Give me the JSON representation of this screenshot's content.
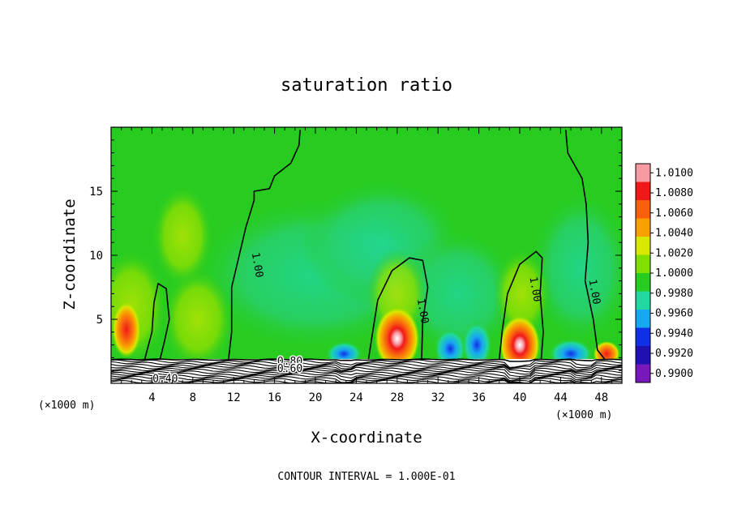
{
  "chart_data": {
    "type": "heatmap",
    "title": "saturation ratio",
    "xlabel": "X-coordinate",
    "ylabel": "Z-coordinate",
    "x_unit_left": "(×1000 m)",
    "x_unit_right": "(×1000 m)",
    "footer": "CONTOUR INTERVAL = 1.000E-01",
    "xlim": [
      0,
      50
    ],
    "ylim": [
      0,
      20
    ],
    "x_ticks": [
      4,
      8,
      12,
      16,
      20,
      24,
      28,
      32,
      36,
      40,
      44,
      48
    ],
    "x_tick_labels": [
      "4",
      "8",
      "12",
      "16",
      "20",
      "24",
      "28",
      "32",
      "36",
      "40",
      "44",
      "48"
    ],
    "y_ticks": [
      5,
      10,
      15
    ],
    "y_tick_labels": [
      "5",
      "10",
      "15"
    ],
    "colorbar": {
      "levels": [
        "1.0100",
        "1.0080",
        "1.0060",
        "1.0040",
        "1.0020",
        "1.0000",
        "0.9980",
        "0.9960",
        "0.9940",
        "0.9920",
        "0.9900"
      ],
      "colors": [
        "#f79aa2",
        "#f01818",
        "#f86010",
        "#f8a000",
        "#d8e800",
        "#80e000",
        "#28cc20",
        "#20d8a0",
        "#18a8f0",
        "#1030e8",
        "#2010b0",
        "#7818b8"
      ]
    },
    "contour_labels": [
      {
        "text": "1.00",
        "x": 14.0,
        "z": 9.2
      },
      {
        "text": "1.00",
        "x": 30.2,
        "z": 5.6
      },
      {
        "text": "1.00",
        "x": 41.2,
        "z": 7.3
      },
      {
        "text": "1.00",
        "x": 47.0,
        "z": 7.1
      },
      {
        "text": "0.80",
        "x": 17.5,
        "z": 1.45
      },
      {
        "text": "0.60",
        "x": 17.5,
        "z": 0.9
      },
      {
        "text": "0.40",
        "x": 5.3,
        "z": 0.1
      }
    ],
    "contour_lines": [
      {
        "level": "1.00",
        "points": [
          [
            11.5,
            1.9
          ],
          [
            11.8,
            4.0
          ],
          [
            11.8,
            7.5
          ],
          [
            12.6,
            10.2
          ],
          [
            13.2,
            12.2
          ],
          [
            14.0,
            14.3
          ],
          [
            14.0,
            15.0
          ],
          [
            15.5,
            15.2
          ],
          [
            16.0,
            16.2
          ],
          [
            17.6,
            17.2
          ],
          [
            18.4,
            18.6
          ],
          [
            18.5,
            19.8
          ]
        ]
      },
      {
        "level": "1.00",
        "points": [
          [
            3.3,
            1.9
          ],
          [
            4.0,
            4.0
          ],
          [
            4.2,
            6.3
          ],
          [
            4.6,
            7.8
          ],
          [
            5.4,
            7.4
          ],
          [
            5.7,
            5.0
          ],
          [
            5.2,
            3.2
          ],
          [
            4.8,
            1.9
          ]
        ]
      },
      {
        "level": "1.00",
        "points": [
          [
            25.2,
            1.9
          ],
          [
            25.6,
            4.0
          ],
          [
            26.1,
            6.5
          ],
          [
            27.5,
            8.8
          ],
          [
            29.2,
            9.8
          ],
          [
            30.5,
            9.6
          ],
          [
            31.0,
            7.5
          ],
          [
            30.5,
            4.8
          ],
          [
            30.4,
            1.9
          ]
        ]
      },
      {
        "level": "1.00",
        "points": [
          [
            38.0,
            1.9
          ],
          [
            38.3,
            4.2
          ],
          [
            38.8,
            7.0
          ],
          [
            40.0,
            9.3
          ],
          [
            41.6,
            10.3
          ],
          [
            42.2,
            9.8
          ],
          [
            42.0,
            7.0
          ],
          [
            42.3,
            4.0
          ],
          [
            42.1,
            1.9
          ]
        ]
      },
      {
        "level": "1.00",
        "points": [
          [
            44.5,
            19.8
          ],
          [
            44.7,
            18.0
          ],
          [
            46.1,
            16.0
          ],
          [
            46.5,
            14.0
          ],
          [
            46.7,
            11.0
          ],
          [
            46.4,
            8.0
          ],
          [
            47.2,
            5.0
          ],
          [
            47.6,
            2.6
          ],
          [
            48.3,
            1.9
          ]
        ]
      }
    ],
    "moist_cells": [
      {
        "x": 1.5,
        "z": 4.2,
        "rx": 1.4,
        "rz": 2.2,
        "peak": "1.0060"
      },
      {
        "x": 28.0,
        "z": 3.5,
        "rx": 2.2,
        "rz": 2.5,
        "peak": "1.0100"
      },
      {
        "x": 40.0,
        "z": 3.0,
        "rx": 2.0,
        "rz": 2.3,
        "peak": "1.0100"
      },
      {
        "x": 48.5,
        "z": 2.3,
        "rx": 1.3,
        "rz": 1.0,
        "peak": "1.0080"
      }
    ],
    "dry_cells": [
      {
        "x": 22.8,
        "z": 2.3,
        "rx": 1.8,
        "rz": 1.0,
        "peak": "0.9920"
      },
      {
        "x": 33.2,
        "z": 2.7,
        "rx": 1.6,
        "rz": 1.6,
        "peak": "0.9940"
      },
      {
        "x": 35.8,
        "z": 3.0,
        "rx": 1.5,
        "rz": 1.9,
        "peak": "0.9920"
      },
      {
        "x": 45.0,
        "z": 2.3,
        "rx": 2.2,
        "rz": 1.2,
        "peak": "0.9920"
      }
    ]
  }
}
